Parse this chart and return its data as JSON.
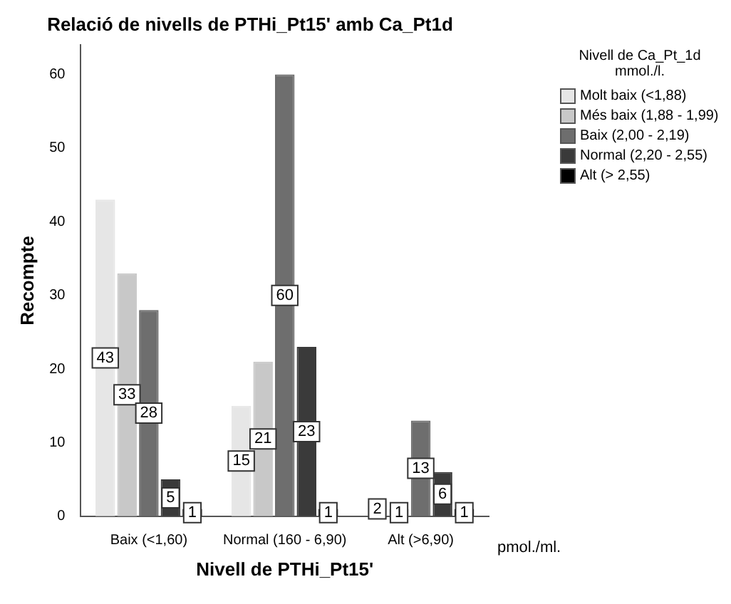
{
  "chart_data": {
    "type": "bar",
    "title": "Relació de nivells de PTHi_Pt15' amb Ca_Pt1d",
    "xlabel": "Nivell de PTHi_Pt15'",
    "ylabel": "Recompte",
    "legend_title": "Nivell de Ca_Pt_1d mmol./l.",
    "categories": [
      "Baix (<1,60)",
      "Normal (160 - 6,90)",
      "Alt (>6,90)"
    ],
    "series": [
      {
        "name": "Molt baix (<1,88)",
        "color": "#e6e6e6",
        "values": [
          43,
          15,
          2
        ]
      },
      {
        "name": "Més baix (1,88 - 1,99)",
        "color": "#c8c8c8",
        "values": [
          33,
          21,
          1
        ]
      },
      {
        "name": "Baix (2,00 - 2,19)",
        "color": "#6e6e6e",
        "values": [
          28,
          60,
          13
        ]
      },
      {
        "name": "Normal (2,20 - 2,55)",
        "color": "#3a3a3a",
        "values": [
          5,
          23,
          6
        ]
      },
      {
        "name": "Alt (> 2,55)",
        "color": "#000000",
        "values": [
          1,
          1,
          1
        ]
      }
    ],
    "ylim": [
      0,
      64
    ],
    "yticks": [
      0,
      10,
      20,
      30,
      40,
      50,
      60
    ],
    "grid": false,
    "legend": "right",
    "data_labels": true,
    "annotations": [
      "pmol./ml."
    ]
  }
}
